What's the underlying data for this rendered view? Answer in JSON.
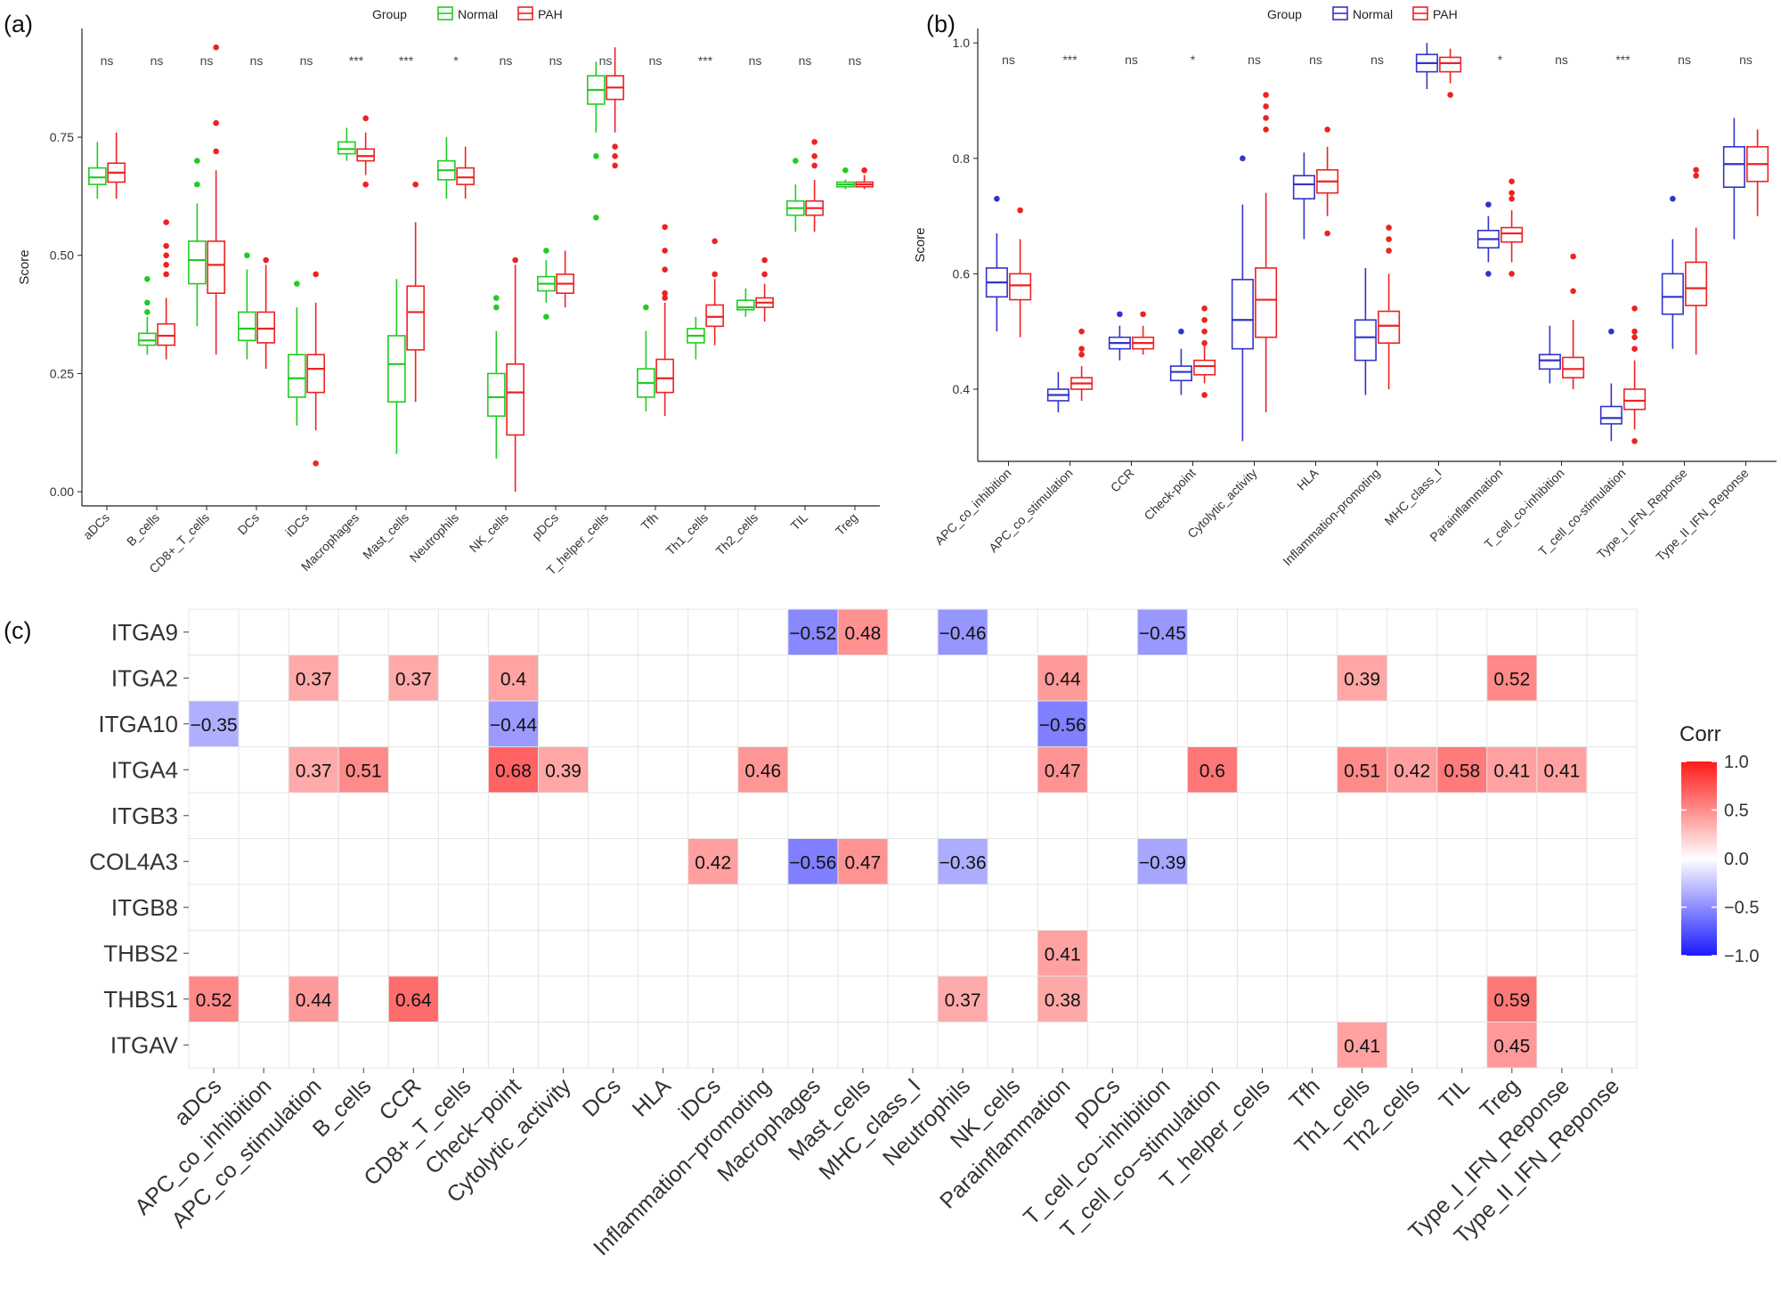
{
  "chart_data": [
    {
      "type": "box",
      "panel_label": "(a)",
      "legend_title": "Group",
      "groups": [
        "Normal",
        "PAH"
      ],
      "group_colors": [
        "#22cc22",
        "#ee2222"
      ],
      "ylabel": "Score",
      "ylim": [
        -0.03,
        0.98
      ],
      "yticks": [
        0.0,
        0.25,
        0.5,
        0.75
      ],
      "ytick_labels": [
        "0.00",
        "0.25",
        "0.50",
        "0.75"
      ],
      "categories": [
        "aDCs",
        "B_cells",
        "CD8+_T_cells",
        "DCs",
        "iDCs",
        "Macrophages",
        "Mast_cells",
        "Neutrophils",
        "NK_cells",
        "pDCs",
        "T_helper_cells",
        "Tfh",
        "Th1_cells",
        "Th2_cells",
        "TIL",
        "Treg"
      ],
      "significance": [
        "ns",
        "ns",
        "ns",
        "ns",
        "ns",
        "***",
        "***",
        "*",
        "ns",
        "ns",
        "ns",
        "ns",
        "***",
        "ns",
        "ns",
        "ns"
      ],
      "series": [
        {
          "name": "Normal",
          "boxes": [
            [
              0.62,
              0.65,
              0.665,
              0.685,
              0.74
            ],
            [
              0.29,
              0.31,
              0.32,
              0.335,
              0.37
            ],
            [
              0.35,
              0.44,
              0.49,
              0.53,
              0.61
            ],
            [
              0.28,
              0.32,
              0.345,
              0.38,
              0.47
            ],
            [
              0.14,
              0.2,
              0.24,
              0.29,
              0.39
            ],
            [
              0.7,
              0.715,
              0.725,
              0.74,
              0.77
            ],
            [
              0.08,
              0.19,
              0.27,
              0.33,
              0.45
            ],
            [
              0.62,
              0.66,
              0.68,
              0.7,
              0.75
            ],
            [
              0.07,
              0.16,
              0.2,
              0.25,
              0.34
            ],
            [
              0.4,
              0.425,
              0.44,
              0.455,
              0.49
            ],
            [
              0.76,
              0.82,
              0.85,
              0.88,
              0.91
            ],
            [
              0.17,
              0.2,
              0.23,
              0.26,
              0.34
            ],
            [
              0.28,
              0.315,
              0.33,
              0.345,
              0.37
            ],
            [
              0.37,
              0.385,
              0.39,
              0.405,
              0.43
            ],
            [
              0.55,
              0.585,
              0.6,
              0.615,
              0.65
            ],
            [
              0.64,
              0.645,
              0.65,
              0.655,
              0.66
            ]
          ],
          "outliers": [
            [],
            [
              0.45,
              0.4,
              0.38
            ],
            [
              0.65,
              0.7
            ],
            [
              0.5
            ],
            [
              0.44
            ],
            [],
            [],
            [],
            [
              0.41,
              0.39
            ],
            [
              0.51,
              0.37
            ],
            [
              0.71,
              0.58
            ],
            [
              0.39
            ],
            [],
            [],
            [
              0.7
            ],
            [
              0.68
            ]
          ]
        },
        {
          "name": "PAH",
          "boxes": [
            [
              0.62,
              0.655,
              0.675,
              0.695,
              0.76
            ],
            [
              0.28,
              0.31,
              0.33,
              0.355,
              0.41
            ],
            [
              0.29,
              0.42,
              0.48,
              0.53,
              0.68
            ],
            [
              0.26,
              0.315,
              0.345,
              0.38,
              0.48
            ],
            [
              0.13,
              0.21,
              0.26,
              0.29,
              0.4
            ],
            [
              0.67,
              0.7,
              0.71,
              0.725,
              0.76
            ],
            [
              0.19,
              0.3,
              0.38,
              0.435,
              0.57
            ],
            [
              0.62,
              0.65,
              0.665,
              0.685,
              0.73
            ],
            [
              0.0,
              0.12,
              0.21,
              0.27,
              0.48
            ],
            [
              0.39,
              0.42,
              0.44,
              0.46,
              0.51
            ],
            [
              0.76,
              0.83,
              0.855,
              0.88,
              0.94
            ],
            [
              0.16,
              0.21,
              0.24,
              0.28,
              0.4
            ],
            [
              0.31,
              0.35,
              0.37,
              0.395,
              0.45
            ],
            [
              0.36,
              0.39,
              0.4,
              0.41,
              0.44
            ],
            [
              0.55,
              0.585,
              0.6,
              0.615,
              0.66
            ],
            [
              0.64,
              0.645,
              0.65,
              0.655,
              0.67
            ]
          ],
          "outliers": [
            [],
            [
              0.57,
              0.52,
              0.5,
              0.48,
              0.46
            ],
            [
              0.78,
              0.72,
              0.94
            ],
            [
              0.49
            ],
            [
              0.46,
              0.06
            ],
            [
              0.79,
              0.65
            ],
            [
              0.65
            ],
            [],
            [
              0.49
            ],
            [],
            [
              0.73,
              0.71,
              0.69
            ],
            [
              0.56,
              0.51,
              0.47,
              0.42,
              0.41
            ],
            [
              0.53,
              0.46
            ],
            [
              0.49,
              0.46
            ],
            [
              0.74,
              0.71,
              0.69
            ],
            [
              0.68
            ]
          ]
        }
      ]
    },
    {
      "type": "box",
      "panel_label": "(b)",
      "legend_title": "Group",
      "groups": [
        "Normal",
        "PAH"
      ],
      "group_colors": [
        "#3333cc",
        "#ee2222"
      ],
      "ylabel": "Score",
      "ylim": [
        0.275,
        1.025
      ],
      "yticks": [
        0.4,
        0.6,
        0.8,
        1.0
      ],
      "ytick_labels": [
        "0.4",
        "0.6",
        "0.8",
        "1.0"
      ],
      "categories": [
        "APC_co_inhibition",
        "APC_co_stimulation",
        "CCR",
        "Check-point",
        "Cytolytic_activity",
        "HLA",
        "Inflammation-promoting",
        "MHC_class_I",
        "Parainflammation",
        "T_cell_co-inhibition",
        "T_cell_co-stimulation",
        "Type_I_IFN_Reponse",
        "Type_II_IFN_Reponse"
      ],
      "significance": [
        "ns",
        "***",
        "ns",
        "*",
        "ns",
        "ns",
        "ns",
        "ns",
        "*",
        "ns",
        "***",
        "ns",
        "ns"
      ],
      "series": [
        {
          "name": "Normal",
          "boxes": [
            [
              0.5,
              0.56,
              0.585,
              0.61,
              0.67
            ],
            [
              0.36,
              0.38,
              0.39,
              0.4,
              0.43
            ],
            [
              0.45,
              0.47,
              0.48,
              0.49,
              0.51
            ],
            [
              0.39,
              0.415,
              0.43,
              0.44,
              0.47
            ],
            [
              0.31,
              0.47,
              0.52,
              0.59,
              0.72
            ],
            [
              0.66,
              0.73,
              0.755,
              0.77,
              0.81
            ],
            [
              0.39,
              0.45,
              0.49,
              0.52,
              0.61
            ],
            [
              0.92,
              0.95,
              0.965,
              0.98,
              1.0
            ],
            [
              0.62,
              0.645,
              0.66,
              0.675,
              0.7
            ],
            [
              0.41,
              0.435,
              0.45,
              0.46,
              0.51
            ],
            [
              0.31,
              0.34,
              0.35,
              0.37,
              0.41
            ],
            [
              0.47,
              0.53,
              0.56,
              0.6,
              0.66
            ],
            [
              0.66,
              0.75,
              0.79,
              0.82,
              0.87
            ]
          ],
          "outliers": [
            [
              0.73
            ],
            [],
            [
              0.53
            ],
            [
              0.5
            ],
            [
              0.8
            ],
            [],
            [],
            [],
            [
              0.72,
              0.6
            ],
            [],
            [
              0.5
            ],
            [
              0.73
            ],
            []
          ]
        },
        {
          "name": "PAH",
          "boxes": [
            [
              0.49,
              0.555,
              0.58,
              0.6,
              0.66
            ],
            [
              0.38,
              0.4,
              0.41,
              0.42,
              0.44
            ],
            [
              0.46,
              0.47,
              0.48,
              0.49,
              0.51
            ],
            [
              0.41,
              0.425,
              0.44,
              0.45,
              0.48
            ],
            [
              0.36,
              0.49,
              0.555,
              0.61,
              0.74
            ],
            [
              0.7,
              0.74,
              0.76,
              0.78,
              0.82
            ],
            [
              0.4,
              0.48,
              0.51,
              0.535,
              0.6
            ],
            [
              0.93,
              0.95,
              0.965,
              0.975,
              0.99
            ],
            [
              0.62,
              0.655,
              0.67,
              0.68,
              0.71
            ],
            [
              0.4,
              0.42,
              0.435,
              0.455,
              0.52
            ],
            [
              0.33,
              0.365,
              0.38,
              0.4,
              0.45
            ],
            [
              0.46,
              0.545,
              0.575,
              0.62,
              0.68
            ],
            [
              0.7,
              0.76,
              0.79,
              0.82,
              0.85
            ]
          ],
          "outliers": [
            [
              0.71
            ],
            [
              0.5,
              0.47,
              0.46
            ],
            [
              0.53
            ],
            [
              0.54,
              0.52,
              0.5,
              0.48,
              0.39
            ],
            [
              0.91,
              0.89,
              0.87,
              0.85
            ],
            [
              0.85,
              0.67
            ],
            [
              0.68,
              0.66,
              0.64
            ],
            [
              0.91
            ],
            [
              0.76,
              0.74,
              0.73,
              0.6
            ],
            [
              0.63,
              0.57
            ],
            [
              0.54,
              0.5,
              0.49,
              0.47,
              0.31
            ],
            [
              0.78,
              0.77
            ],
            []
          ]
        }
      ]
    },
    {
      "type": "heatmap",
      "panel_label": "(c)",
      "rows": [
        "ITGA9",
        "ITGA2",
        "ITGA10",
        "ITGA4",
        "ITGB3",
        "COL4A3",
        "ITGB8",
        "THBS2",
        "THBS1",
        "ITGAV"
      ],
      "columns": [
        "aDCs",
        "APC_co_inhibition",
        "APC_co_stimulation",
        "B_cells",
        "CCR",
        "CD8+_T_cells",
        "Check−point",
        "Cytolytic_activity",
        "DCs",
        "HLA",
        "iDCs",
        "Inflammation−promoting",
        "Macrophages",
        "Mast_cells",
        "MHC_class_I",
        "Neutrophils",
        "NK_cells",
        "Parainflammation",
        "pDCs",
        "T_cell_co−inhibition",
        "T_cell_co−stimulation",
        "T_helper_cells",
        "Tfh",
        "Th1_cells",
        "Th2_cells",
        "TIL",
        "Treg",
        "Type_I_IFN_Reponse",
        "Type_II_IFN_Reponse"
      ],
      "cells": [
        {
          "row": "ITGA9",
          "col": "Macrophages",
          "value": -0.52,
          "label": "−0.52"
        },
        {
          "row": "ITGA9",
          "col": "Mast_cells",
          "value": 0.48,
          "label": "0.48"
        },
        {
          "row": "ITGA9",
          "col": "Neutrophils",
          "value": -0.46,
          "label": "−0.46"
        },
        {
          "row": "ITGA9",
          "col": "T_cell_co−inhibition",
          "value": -0.45,
          "label": "−0.45"
        },
        {
          "row": "ITGA2",
          "col": "APC_co_stimulation",
          "value": 0.37,
          "label": "0.37"
        },
        {
          "row": "ITGA2",
          "col": "CCR",
          "value": 0.37,
          "label": "0.37"
        },
        {
          "row": "ITGA2",
          "col": "Check−point",
          "value": 0.4,
          "label": "0.4"
        },
        {
          "row": "ITGA2",
          "col": "Parainflammation",
          "value": 0.44,
          "label": "0.44"
        },
        {
          "row": "ITGA2",
          "col": "Th1_cells",
          "value": 0.39,
          "label": "0.39"
        },
        {
          "row": "ITGA2",
          "col": "Treg",
          "value": 0.52,
          "label": "0.52"
        },
        {
          "row": "ITGA10",
          "col": "aDCs",
          "value": -0.35,
          "label": "−0.35"
        },
        {
          "row": "ITGA10",
          "col": "Check−point",
          "value": -0.44,
          "label": "−0.44"
        },
        {
          "row": "ITGA10",
          "col": "Parainflammation",
          "value": -0.56,
          "label": "−0.56"
        },
        {
          "row": "ITGA4",
          "col": "APC_co_stimulation",
          "value": 0.37,
          "label": "0.37"
        },
        {
          "row": "ITGA4",
          "col": "B_cells",
          "value": 0.51,
          "label": "0.51"
        },
        {
          "row": "ITGA4",
          "col": "Check−point",
          "value": 0.68,
          "label": "0.68"
        },
        {
          "row": "ITGA4",
          "col": "Cytolytic_activity",
          "value": 0.39,
          "label": "0.39"
        },
        {
          "row": "ITGA4",
          "col": "Inflammation−promoting",
          "value": 0.46,
          "label": "0.46"
        },
        {
          "row": "ITGA4",
          "col": "Parainflammation",
          "value": 0.47,
          "label": "0.47"
        },
        {
          "row": "ITGA4",
          "col": "T_cell_co−stimulation",
          "value": 0.6,
          "label": "0.6"
        },
        {
          "row": "ITGA4",
          "col": "Th1_cells",
          "value": 0.51,
          "label": "0.51"
        },
        {
          "row": "ITGA4",
          "col": "Th2_cells",
          "value": 0.42,
          "label": "0.42"
        },
        {
          "row": "ITGA4",
          "col": "TIL",
          "value": 0.58,
          "label": "0.58"
        },
        {
          "row": "ITGA4",
          "col": "Treg",
          "value": 0.41,
          "label": "0.41"
        },
        {
          "row": "ITGA4",
          "col": "Type_I_IFN_Reponse",
          "value": 0.41,
          "label": "0.41"
        },
        {
          "row": "COL4A3",
          "col": "iDCs",
          "value": 0.42,
          "label": "0.42"
        },
        {
          "row": "COL4A3",
          "col": "Macrophages",
          "value": -0.56,
          "label": "−0.56"
        },
        {
          "row": "COL4A3",
          "col": "Mast_cells",
          "value": 0.47,
          "label": "0.47"
        },
        {
          "row": "COL4A3",
          "col": "Neutrophils",
          "value": -0.36,
          "label": "−0.36"
        },
        {
          "row": "COL4A3",
          "col": "T_cell_co−inhibition",
          "value": -0.39,
          "label": "−0.39"
        },
        {
          "row": "THBS2",
          "col": "Parainflammation",
          "value": 0.41,
          "label": "0.41"
        },
        {
          "row": "THBS1",
          "col": "aDCs",
          "value": 0.52,
          "label": "0.52"
        },
        {
          "row": "THBS1",
          "col": "APC_co_stimulation",
          "value": 0.44,
          "label": "0.44"
        },
        {
          "row": "THBS1",
          "col": "CCR",
          "value": 0.64,
          "label": "0.64"
        },
        {
          "row": "THBS1",
          "col": "Neutrophils",
          "value": 0.37,
          "label": "0.37"
        },
        {
          "row": "THBS1",
          "col": "Parainflammation",
          "value": 0.38,
          "label": "0.38"
        },
        {
          "row": "THBS1",
          "col": "Treg",
          "value": 0.59,
          "label": "0.59"
        },
        {
          "row": "ITGAV",
          "col": "Th1_cells",
          "value": 0.41,
          "label": "0.41"
        },
        {
          "row": "ITGAV",
          "col": "Treg",
          "value": 0.45,
          "label": "0.45"
        }
      ],
      "colorbar": {
        "title": "Corr",
        "range": [
          -1.0,
          1.0
        ],
        "ticks": [
          "1.0",
          "0.5",
          "0.0",
          "−0.5",
          "−1.0"
        ],
        "tick_values": [
          1.0,
          0.5,
          0.0,
          -0.5,
          -1.0
        ],
        "low_color": "#1a1aff",
        "mid_color": "#ffffff",
        "high_color": "#ff1a1a"
      }
    }
  ]
}
